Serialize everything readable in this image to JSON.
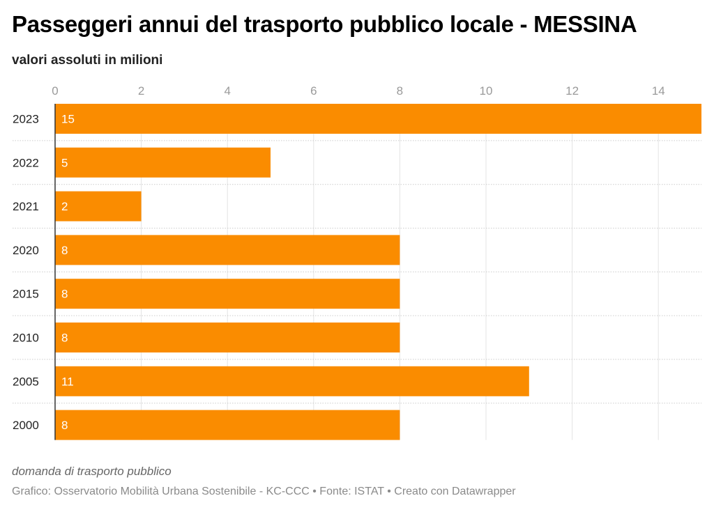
{
  "title": "Passeggeri annui del trasporto pubblico locale - MESSINA",
  "subtitle": "valori assoluti in milioni",
  "notes": "domanda di trasporto pubblico",
  "footer": "Grafico: Osservatorio Mobilità Urbana Sostenibile - KC-CCC • Fonte: ISTAT • Creato con Datawrapper",
  "colors": {
    "bar": "#fa8c00",
    "grid": "#e3e3e3",
    "axis": "#333333"
  },
  "chart_data": {
    "type": "bar",
    "orientation": "horizontal",
    "title": "Passeggeri annui del trasporto pubblico locale - MESSINA",
    "subtitle": "valori assoluti in milioni",
    "xlabel": "",
    "ylabel": "",
    "categories": [
      "2023",
      "2022",
      "2021",
      "2020",
      "2015",
      "2010",
      "2005",
      "2000"
    ],
    "values": [
      15,
      5,
      2,
      8,
      8,
      8,
      11,
      8
    ],
    "value_labels": [
      "15",
      "5",
      "2",
      "8",
      "8",
      "8",
      "11",
      "8"
    ],
    "xlim": [
      0,
      15
    ],
    "xticks": [
      0,
      2,
      4,
      6,
      8,
      10,
      12,
      14
    ],
    "xtick_labels": [
      "0",
      "2",
      "4",
      "6",
      "8",
      "10",
      "12",
      "14"
    ],
    "grid": true,
    "axis_position": "top"
  }
}
